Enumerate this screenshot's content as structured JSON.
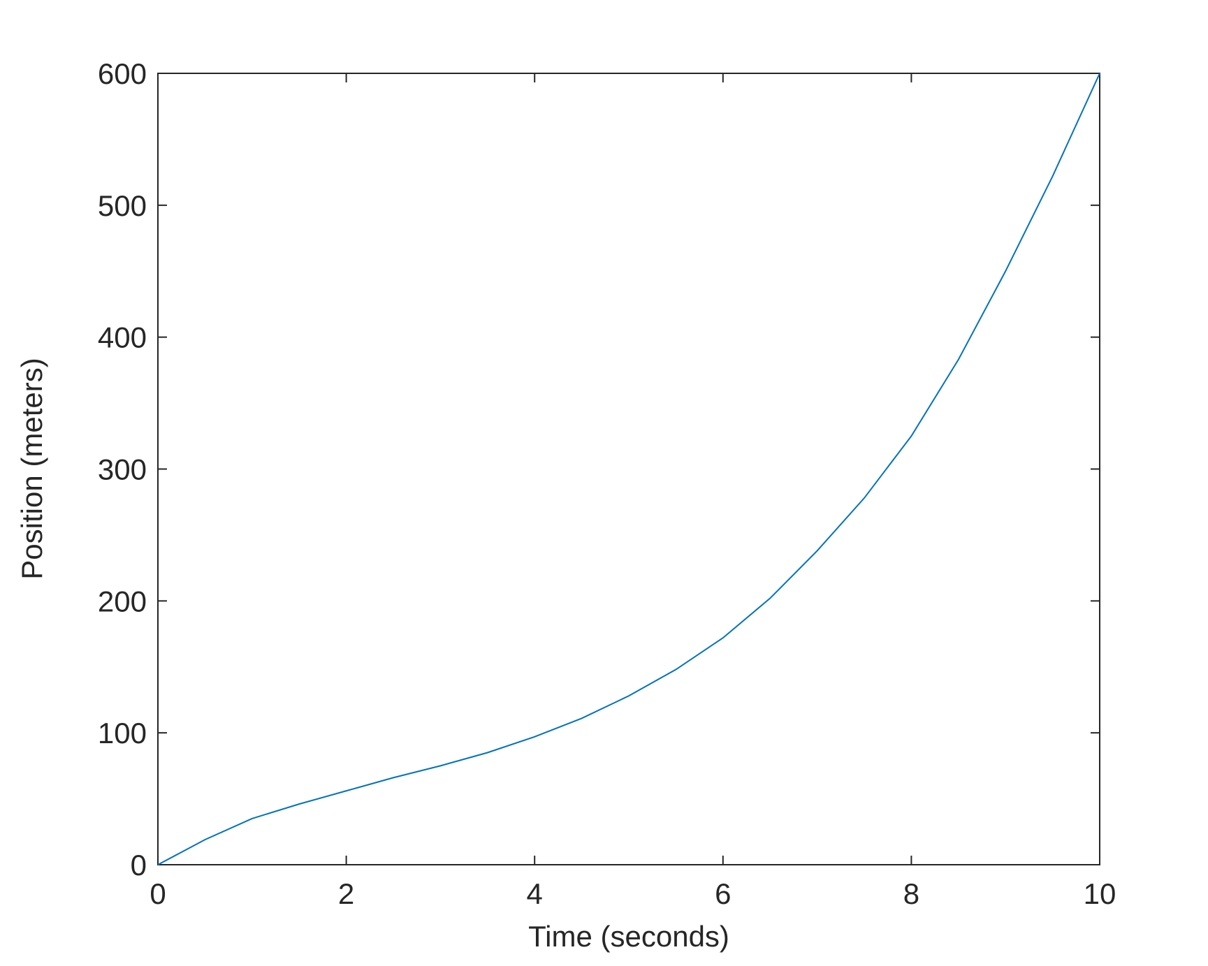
{
  "chart_data": {
    "type": "line",
    "xlabel": "Time (seconds)",
    "ylabel": "Position (meters)",
    "x": [
      0,
      0.5,
      1,
      1.5,
      2,
      2.5,
      3,
      3.5,
      4,
      4.5,
      5,
      5.5,
      6,
      6.5,
      7,
      7.5,
      8,
      8.5,
      9,
      9.5,
      10
    ],
    "series": [
      {
        "color": "#0072bd",
        "values": [
          0,
          19,
          35,
          46,
          56,
          66,
          75,
          85,
          97,
          111,
          128,
          148,
          172,
          202,
          238,
          278,
          325,
          383,
          450,
          522,
          600
        ]
      }
    ],
    "xlim": [
      0,
      10
    ],
    "xticks": [
      0,
      2,
      4,
      6,
      8,
      10
    ],
    "ylim": [
      0,
      600
    ],
    "yticks": [
      0,
      100,
      200,
      300,
      400,
      500,
      600
    ],
    "grid": false
  }
}
